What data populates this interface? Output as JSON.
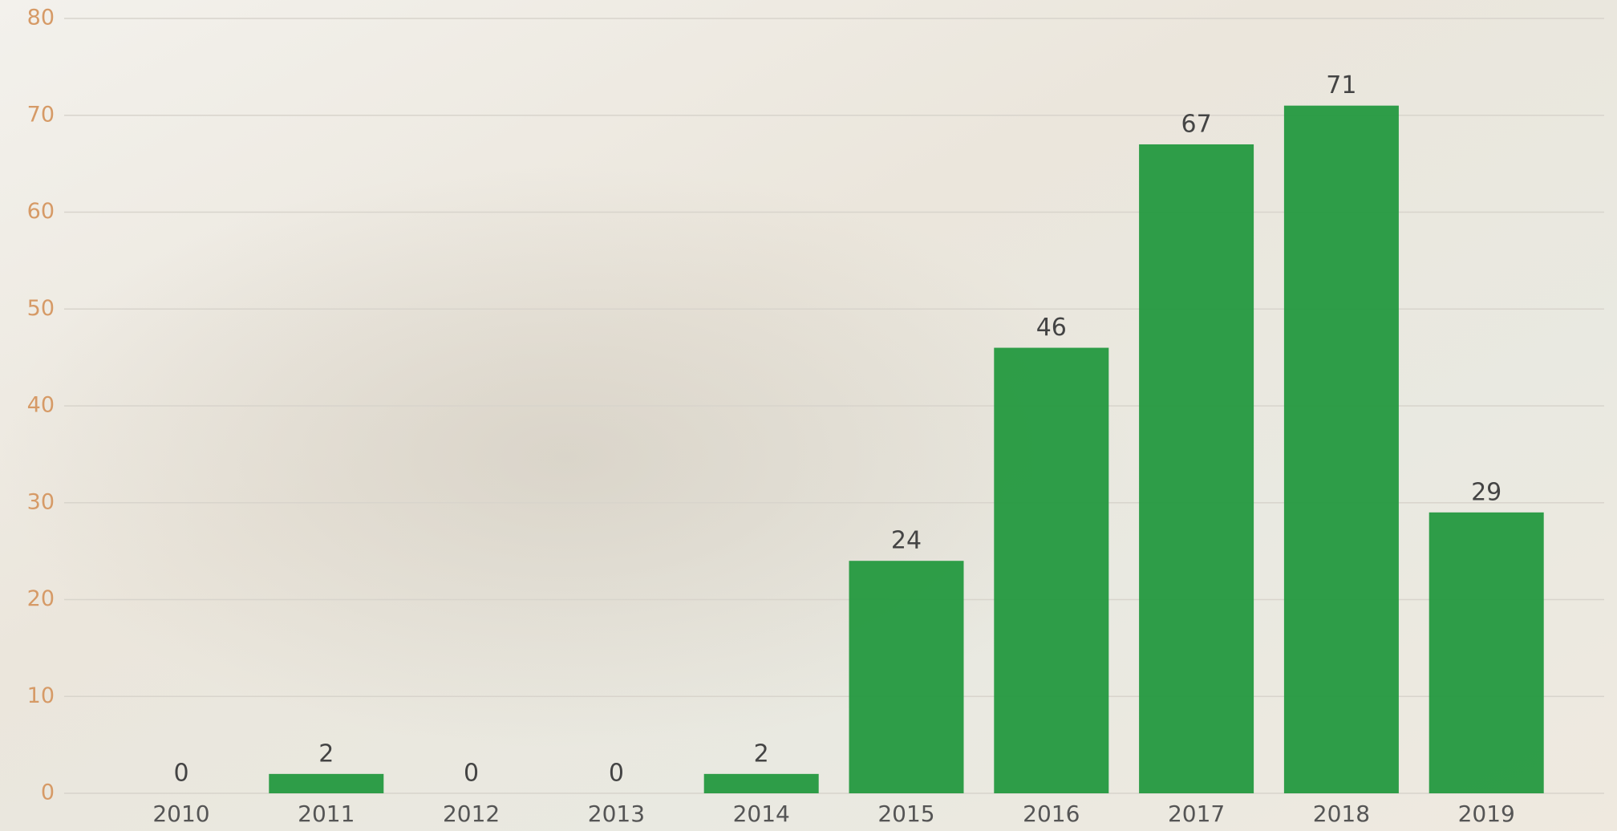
{
  "chart_data": {
    "type": "bar",
    "categories": [
      "2010",
      "2011",
      "2012",
      "2013",
      "2014",
      "2015",
      "2016",
      "2017",
      "2018",
      "2019"
    ],
    "values": [
      0,
      2,
      0,
      0,
      2,
      24,
      46,
      67,
      71,
      29
    ],
    "color": "#24993f",
    "ylim": [
      0,
      80
    ],
    "yticks": [
      0,
      10,
      20,
      30,
      40,
      50,
      60,
      70,
      80
    ],
    "grid": true
  }
}
